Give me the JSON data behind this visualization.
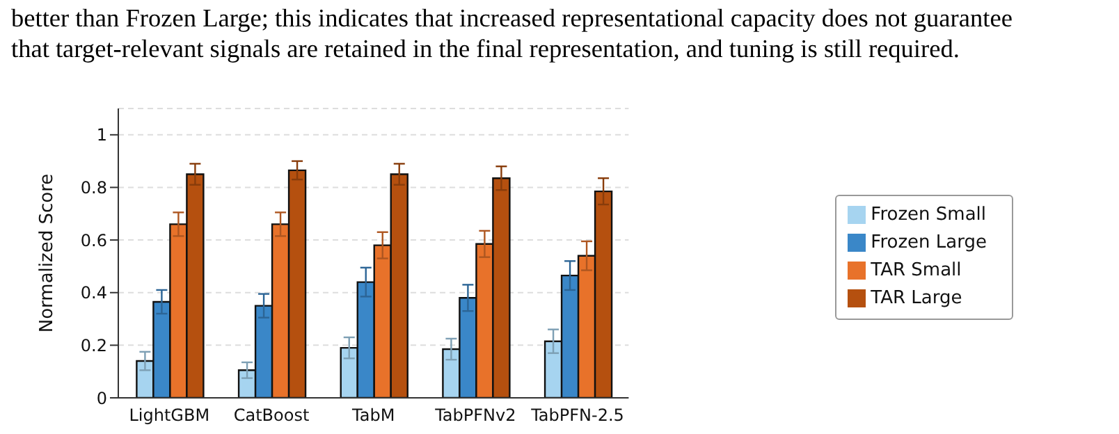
{
  "chart_data": {
    "type": "bar",
    "ylabel": "Normalized Score",
    "categories": [
      "LightGBM",
      "CatBoost",
      "TabM",
      "TabPFNv2",
      "TabPFN-2.5"
    ],
    "annotations": [
      "better than Frozen Large; this indicates that increased representational capacity does not guarantee",
      "that target-relevant signals are retained in the final representation, and tuning is still required."
    ],
    "series": [
      {
        "name": "Frozen Small",
        "color": "#a6d4f0",
        "values": [
          0.14,
          0.105,
          0.19,
          0.185,
          0.215
        ],
        "errors": [
          0.035,
          0.03,
          0.04,
          0.04,
          0.045
        ]
      },
      {
        "name": "Frozen Large",
        "color": "#3a87c8",
        "values": [
          0.365,
          0.35,
          0.44,
          0.38,
          0.465
        ],
        "errors": [
          0.045,
          0.045,
          0.055,
          0.05,
          0.055
        ]
      },
      {
        "name": "TAR Small",
        "color": "#e8722a",
        "values": [
          0.66,
          0.66,
          0.58,
          0.585,
          0.54
        ],
        "errors": [
          0.045,
          0.045,
          0.05,
          0.05,
          0.055
        ]
      },
      {
        "name": "TAR Large",
        "color": "#b5500f",
        "values": [
          0.85,
          0.865,
          0.85,
          0.835,
          0.785
        ],
        "errors": [
          0.04,
          0.035,
          0.04,
          0.045,
          0.05
        ]
      }
    ],
    "ylim": [
      0,
      1.1
    ],
    "yticks": [
      0,
      0.2,
      0.4,
      0.6,
      0.8,
      {
        "value": 1,
        "label": "1"
      }
    ],
    "grid": "y",
    "legend": "right"
  }
}
